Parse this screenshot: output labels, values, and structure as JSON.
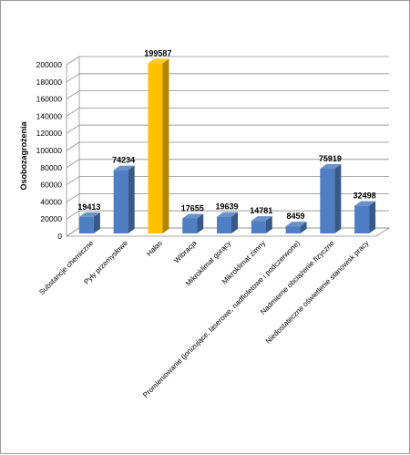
{
  "chart_data": {
    "type": "bar",
    "title": "",
    "xlabel": "",
    "ylabel": "Osobozagrożenia",
    "ylim": [
      0,
      200000
    ],
    "yticks": [
      0,
      20000,
      40000,
      60000,
      80000,
      100000,
      120000,
      140000,
      160000,
      180000,
      200000
    ],
    "grid": true,
    "legend": "none",
    "style": "3d",
    "categories": [
      "Substancje chemiczne",
      "Pyły przemysłowe",
      "Hałas",
      "Wibracja",
      "Mikroklimat gorący",
      "Mikroklimat zimny",
      "Promieniowanie (jonizujące, laserowe, nadfioletowe i podczerwone)",
      "Nadmierne obciążenie fizyczne",
      "Niedostateczne oświetlenie stanowisk pracy"
    ],
    "values": [
      19413,
      74234,
      199587,
      17655,
      19639,
      14781,
      8459,
      75919,
      32498
    ],
    "colors": {
      "default_bar": "#4f7fc2",
      "highlight_bar": "#ffc000",
      "highlight_index": 2,
      "grid": "#8c8c8c"
    }
  }
}
